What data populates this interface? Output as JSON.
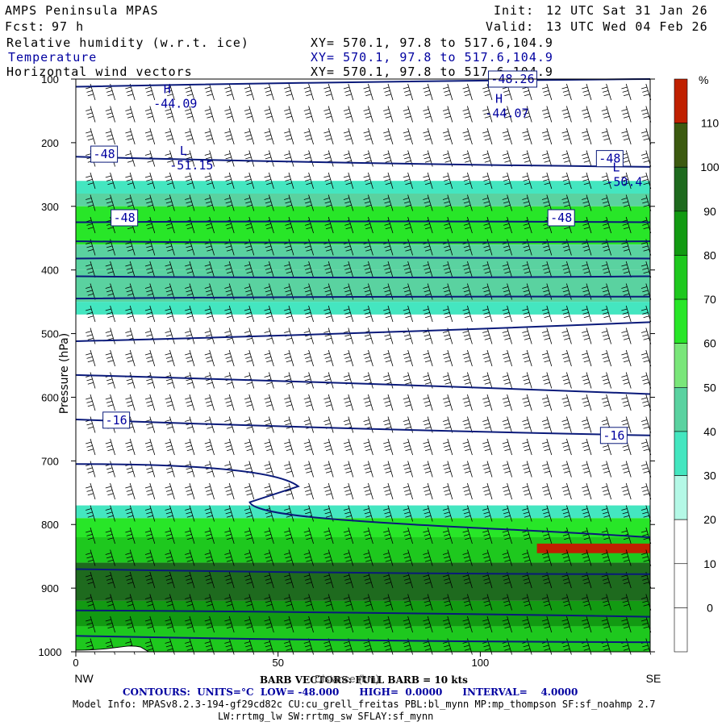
{
  "header": {
    "app_title": "AMPS Peninsula MPAS",
    "forecast_label": "Fcst:",
    "forecast_value": "97 h",
    "init_label": "Init:",
    "init_value": "12 UTC Sat 31 Jan 26",
    "valid_label": "Valid:",
    "valid_value": "13 UTC Wed 04 Feb 26",
    "fields": [
      {
        "name": "Relative humidity (w.r.t. ice)",
        "xy": "XY= 570.1, 97.8 to 517.6,104.9"
      },
      {
        "name": "Temperature",
        "xy": "XY= 570.1, 97.8 to 517.6,104.9"
      },
      {
        "name": "Horizontal wind vectors",
        "xy": "XY= 570.1, 97.8 to 517.6,104.9"
      }
    ]
  },
  "colors": {
    "contour": "#0a1a7a",
    "text_blue": "#0000a0",
    "barb": "#000000"
  },
  "chart_data": {
    "type": "heatmap",
    "xlabel": "Distance (km)",
    "ylabel": "Pressure (hPa)",
    "xlim": [
      0,
      142
    ],
    "ylim": [
      1000,
      100
    ],
    "x_ticks": [
      "0",
      "50",
      "100"
    ],
    "y_ticks": [
      "100",
      "200",
      "300",
      "400",
      "500",
      "600",
      "700",
      "800",
      "900",
      "1000"
    ],
    "x_end_labels": [
      "NW",
      "SE"
    ],
    "colorbar": {
      "unit": "%",
      "levels": [
        "110",
        "100",
        "90",
        "80",
        "70",
        "60",
        "50",
        "40",
        "30",
        "20",
        "10",
        "0"
      ],
      "colors": [
        "#c02000",
        "#3c5a10",
        "#1e6a1e",
        "#129a12",
        "#1ec81e",
        "#28e628",
        "#7ae67a",
        "#5ad2a0",
        "#44e6c0",
        "#b4f8e6",
        "#ffffff",
        "#ffffff",
        "#ffffff"
      ]
    },
    "rh_bands": [
      {
        "p_top": 260,
        "p_bottom": 280,
        "rh": 30
      },
      {
        "p_top": 280,
        "p_bottom": 300,
        "rh": 40
      },
      {
        "p_top": 300,
        "p_bottom": 360,
        "rh": 60
      },
      {
        "p_top": 360,
        "p_bottom": 400,
        "rh": 45
      },
      {
        "p_top": 400,
        "p_bottom": 450,
        "rh": 40
      },
      {
        "p_top": 450,
        "p_bottom": 470,
        "rh": 30
      },
      {
        "p_top": 770,
        "p_bottom": 790,
        "rh": 30
      },
      {
        "p_top": 790,
        "p_bottom": 820,
        "rh": 60
      },
      {
        "p_top": 820,
        "p_bottom": 860,
        "rh": 75
      },
      {
        "p_top": 860,
        "p_bottom": 920,
        "rh": 95
      },
      {
        "p_top": 920,
        "p_bottom": 960,
        "rh": 80
      },
      {
        "p_top": 960,
        "p_bottom": 1000,
        "rh": 70
      }
    ],
    "rh_patches": [
      {
        "x0": 114,
        "x1": 142,
        "p0": 830,
        "p1": 845,
        "rh": 110
      }
    ],
    "temperature_labels": [
      {
        "text": "-48",
        "x": 7,
        "p": 218
      },
      {
        "text": "-48",
        "x": 132,
        "p": 225
      },
      {
        "text": "-48",
        "x": 12,
        "p": 318
      },
      {
        "text": "-48",
        "x": 120,
        "p": 318
      },
      {
        "text": "-16",
        "x": 10,
        "p": 636
      },
      {
        "text": "-16",
        "x": 133,
        "p": 660
      },
      {
        "text": "-48.26",
        "x": 108,
        "p": 100
      }
    ],
    "extrema": [
      {
        "type": "H",
        "value": "-44.09",
        "x": 23,
        "p": 135
      },
      {
        "type": "H",
        "value": "-44.07",
        "x": 105,
        "p": 150
      },
      {
        "type": "L",
        "value": "-51.15",
        "x": 27,
        "p": 232
      },
      {
        "type": "L",
        "value": "-50.4",
        "x": 134,
        "p": 258
      }
    ],
    "contours_p_left": [
      112,
      222,
      325,
      355,
      382,
      410,
      445,
      512,
      565,
      635,
      705,
      870,
      935,
      975
    ],
    "contours_p_right": [
      100,
      238,
      325,
      355,
      382,
      410,
      442,
      482,
      595,
      660,
      820,
      878,
      945,
      985
    ]
  },
  "footer": {
    "barb_note": "BARB VECTORS: FULL BARB = 10 kts",
    "contours_note": "CONTOURS:  UNITS=°C  LOW= -48.000      HIGH=  0.0000      INTERVAL=    4.0000",
    "model_info": "Model Info: MPASv8.2.3-194-gf29cd82c CU:cu_grell_freitas PBL:bl_mynn MP:mp_thompson SF:sf_noahmp 2.7",
    "model_info2": "LW:rrtmg_lw SW:rrtmg_sw SFLAY:sf_mynn"
  }
}
